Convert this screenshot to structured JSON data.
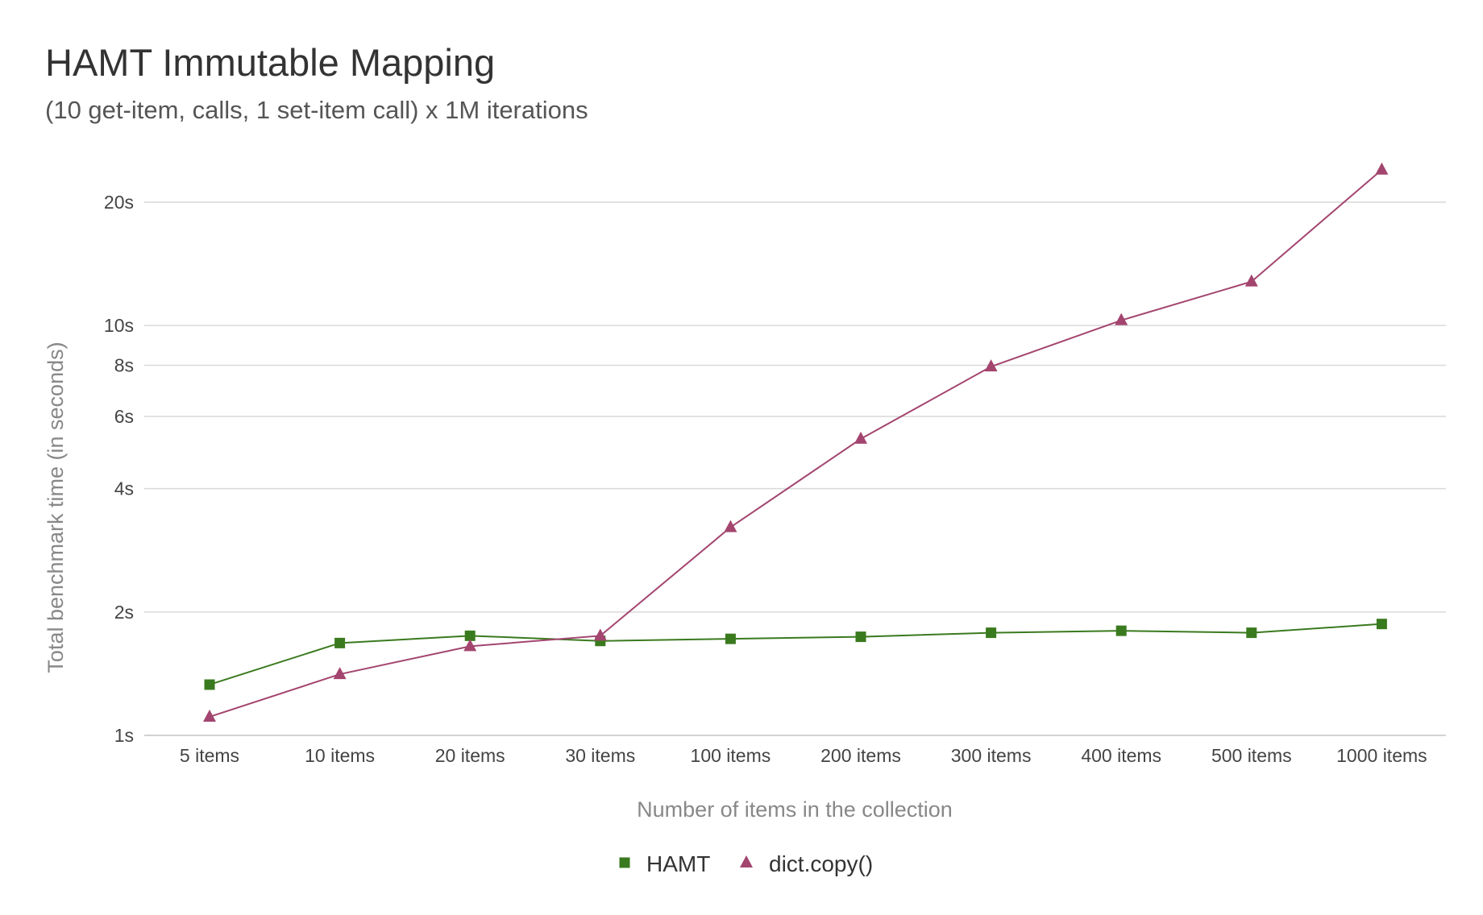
{
  "chart_data": {
    "type": "line",
    "title": "HAMT Immutable Mapping",
    "subtitle": "(10 get-item, calls, 1 set-item call) x 1M iterations",
    "xlabel": "Number of items in the collection",
    "ylabel": "Total benchmark time (in seconds)",
    "yscale": "log",
    "ylim": [
      1,
      25
    ],
    "yticks": [
      1,
      2,
      4,
      6,
      8,
      10,
      20
    ],
    "ytick_labels": [
      "1s",
      "2s",
      "4s",
      "6s",
      "8s",
      "10s",
      "20s"
    ],
    "grid": true,
    "legend_position": "bottom",
    "categories": [
      "5 items",
      "10 items",
      "20 items",
      "30 items",
      "100 items",
      "200 items",
      "300 items",
      "400 items",
      "500 items",
      "1000 items"
    ],
    "series": [
      {
        "name": "HAMT",
        "color": "#3a7a1e",
        "marker": "square",
        "values": [
          1.33,
          1.68,
          1.75,
          1.7,
          1.72,
          1.74,
          1.78,
          1.8,
          1.78,
          1.87
        ]
      },
      {
        "name": "dict.copy()",
        "color": "#a3456f",
        "marker": "triangle",
        "values": [
          1.11,
          1.41,
          1.65,
          1.75,
          3.22,
          5.29,
          7.94,
          10.3,
          12.8,
          24.0
        ]
      }
    ]
  }
}
